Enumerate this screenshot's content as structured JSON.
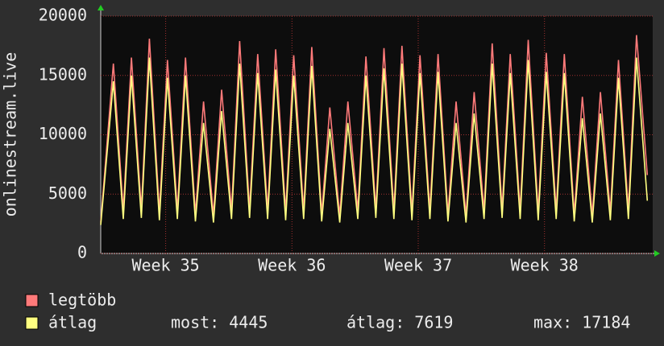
{
  "chart_data": {
    "type": "line",
    "ylabel": "onlinestream.live",
    "x": [
      0,
      0.7,
      1.25,
      1.7,
      2.25,
      2.7,
      3.25,
      3.7,
      4.25,
      4.7,
      5.25,
      5.7,
      6.25,
      6.7,
      7.25,
      7.7,
      8.25,
      8.7,
      9.25,
      9.7,
      10.25,
      10.7,
      11.25,
      11.7,
      12.25,
      12.7,
      13.25,
      13.7,
      14.25,
      14.7,
      15.25,
      15.7,
      16.25,
      16.7,
      17.25,
      17.7,
      18.25,
      18.7,
      19.25,
      19.7,
      20.25,
      20.7,
      21.25,
      21.7,
      22.25,
      22.7,
      23.25,
      23.7,
      24.25,
      24.7,
      25.25,
      25.7,
      26.25,
      26.7,
      27.25,
      27.7,
      28.25,
      28.7,
      29.25,
      29.7,
      30.3
    ],
    "series": [
      {
        "name": "legtöbb",
        "color": "#ff7a7a",
        "values": [
          2600,
          16000,
          3600,
          16500,
          3700,
          18100,
          3500,
          16300,
          3600,
          16500,
          3300,
          12800,
          3200,
          13800,
          3600,
          17900,
          3700,
          16800,
          3600,
          17200,
          3500,
          16700,
          3600,
          17400,
          3300,
          12300,
          3200,
          12800,
          3600,
          16600,
          3700,
          17300,
          3600,
          17500,
          3500,
          16700,
          3600,
          16800,
          3300,
          12800,
          3200,
          13600,
          3600,
          17700,
          3700,
          16800,
          3600,
          18000,
          3500,
          16900,
          3600,
          16800,
          3300,
          13200,
          3200,
          13600,
          3500,
          16300,
          3600,
          18400,
          6600
        ]
      },
      {
        "name": "átlag",
        "color": "#ffff80",
        "values": [
          2400,
          14500,
          2900,
          15000,
          3000,
          16500,
          2800,
          14800,
          2900,
          15000,
          2700,
          11000,
          2600,
          12000,
          2900,
          16000,
          3000,
          15200,
          2900,
          15500,
          2800,
          15000,
          2900,
          15800,
          2700,
          10500,
          2600,
          11000,
          2900,
          15000,
          3000,
          15600,
          2900,
          16000,
          2800,
          15200,
          2900,
          15300,
          2700,
          11000,
          2600,
          11800,
          2900,
          16000,
          3000,
          15200,
          2900,
          16300,
          2800,
          15300,
          2900,
          15200,
          2700,
          11400,
          2600,
          11800,
          2800,
          14800,
          2900,
          16500,
          4445
        ]
      }
    ],
    "xlim": [
      0,
      30.6
    ],
    "xticks": [
      {
        "value": 3.6,
        "label": "Week 35"
      },
      {
        "value": 10.6,
        "label": "Week 36"
      },
      {
        "value": 17.6,
        "label": "Week 37"
      },
      {
        "value": 24.6,
        "label": "Week 38"
      }
    ],
    "ylim": [
      0,
      20000
    ],
    "yticks": [
      0,
      5000,
      10000,
      15000,
      20000
    ],
    "grid": true,
    "stats": [
      "most: 4445",
      "átlag: 7619",
      "max: 17184"
    ]
  }
}
